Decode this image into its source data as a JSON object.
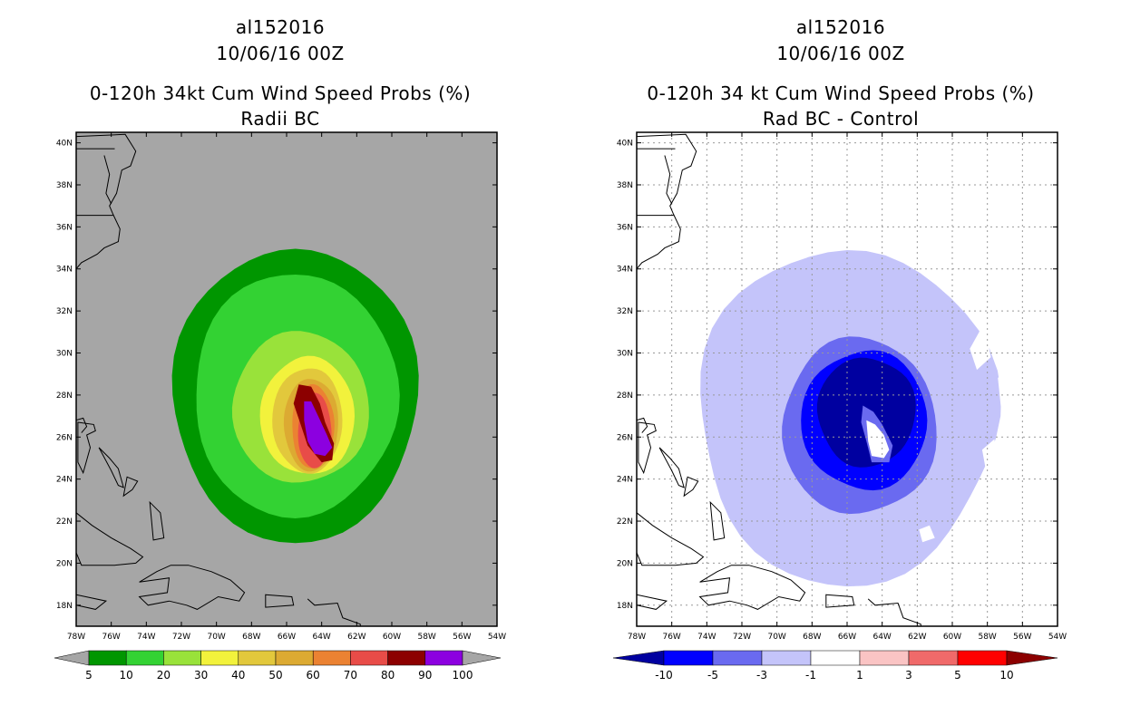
{
  "chart_data": [
    {
      "type": "heatmap",
      "storm_id": "al152016",
      "valid_time": "10/06/16 00Z",
      "title": "0-120h 34kt Cum Wind Speed Probs (%)",
      "subtitle": "Radii BC",
      "x_ticks": [
        "78W",
        "76W",
        "74W",
        "72W",
        "70W",
        "68W",
        "66W",
        "64W",
        "62W",
        "60W",
        "58W",
        "56W",
        "54W"
      ],
      "y_ticks": [
        "18N",
        "20N",
        "22N",
        "24N",
        "26N",
        "28N",
        "30N",
        "32N",
        "34N",
        "36N",
        "38N",
        "40N"
      ],
      "xlim": [
        -78,
        -54
      ],
      "ylim": [
        17,
        40.5
      ],
      "gridlines": false,
      "background_color": "#a6a6a6",
      "colorbar": {
        "labels": [
          "5",
          "10",
          "20",
          "30",
          "40",
          "50",
          "60",
          "70",
          "80",
          "90",
          "100"
        ],
        "colors": [
          "#009600",
          "#33d233",
          "#99e23a",
          "#f2f23c",
          "#e2c83c",
          "#dcaa32",
          "#eb8232",
          "#e84c48",
          "#8c0000",
          "#8c00e0"
        ]
      },
      "contours": [
        {
          "level": 5,
          "center": [
            -65.5,
            28.0
          ],
          "dlon": 7.0,
          "dlat": 7.0
        },
        {
          "level": 10,
          "center": [
            -65.5,
            28.0
          ],
          "dlon": 5.8,
          "dlat": 5.8
        },
        {
          "level": 20,
          "center": [
            -65.2,
            27.4
          ],
          "dlon": 3.9,
          "dlat": 3.6
        },
        {
          "level": 30,
          "center": [
            -64.8,
            27.0
          ],
          "dlon": 2.7,
          "dlat": 2.8
        },
        {
          "level": 40,
          "center": [
            -64.8,
            26.8
          ],
          "dlon": 2.0,
          "dlat": 2.5
        },
        {
          "level": 50,
          "center": [
            -64.6,
            26.6
          ],
          "dlon": 1.55,
          "dlat": 2.2
        },
        {
          "level": 60,
          "center": [
            -64.5,
            26.5
          ],
          "dlon": 1.2,
          "dlat": 2.0
        },
        {
          "level": 70,
          "center": [
            -64.4,
            26.3
          ],
          "dlon": 0.95,
          "dlat": 1.8
        }
      ],
      "core_80_100": {
        "level": 80,
        "inner_level": 90
      }
    },
    {
      "type": "heatmap",
      "storm_id": "al152016",
      "valid_time": "10/06/16 00Z",
      "title": "0-120h 34 kt Cum Wind Speed Probs (%)",
      "subtitle": "Rad BC - Control",
      "x_ticks": [
        "78W",
        "76W",
        "74W",
        "72W",
        "70W",
        "68W",
        "66W",
        "64W",
        "62W",
        "60W",
        "58W",
        "56W",
        "54W"
      ],
      "y_ticks": [
        "18N",
        "20N",
        "22N",
        "24N",
        "26N",
        "28N",
        "30N",
        "32N",
        "34N",
        "36N",
        "38N",
        "40N"
      ],
      "xlim": [
        -78,
        -54
      ],
      "ylim": [
        17,
        40.5
      ],
      "gridlines": true,
      "background_color": "#ffffff",
      "colorbar": {
        "labels": [
          "-10",
          "-5",
          "-3",
          "-1",
          "1",
          "3",
          "5",
          "10"
        ],
        "colors": [
          "#0000a0",
          "#0000ff",
          "#6a6af0",
          "#c4c4fa",
          "#ffffff",
          "#fac4c4",
          "#f06a6a",
          "#ff0000",
          "#8c0000"
        ]
      },
      "contours": [
        {
          "level": -1,
          "center": [
            -66.0,
            27.0
          ],
          "dlon": 8.5,
          "dlat": 8.0
        },
        {
          "level": -3,
          "center": [
            -65.3,
            26.5
          ],
          "dlon": 4.4,
          "dlat": 4.2
        },
        {
          "level": -5,
          "center": [
            -65.0,
            26.8
          ],
          "dlon": 3.6,
          "dlat": 3.3
        },
        {
          "level": -10,
          "center": [
            -64.9,
            27.2
          ],
          "dlon": 2.8,
          "dlat": 2.6
        }
      ],
      "core_1": {
        "level": 1
      }
    }
  ]
}
